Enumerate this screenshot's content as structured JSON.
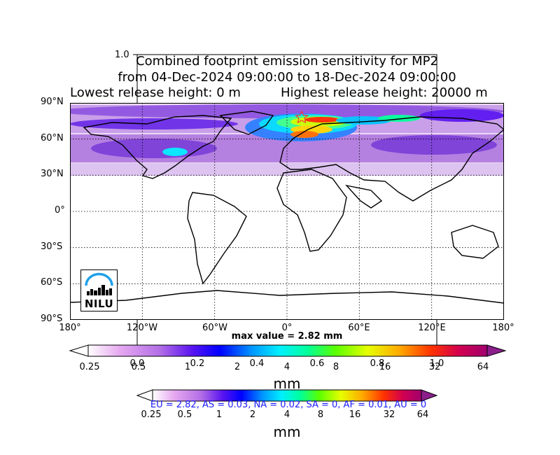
{
  "title": {
    "line1": "Combined footprint emission sensitivity for MP2",
    "line2": "from 04-Dec-2024 09:00:00 to 18-Dec-2024 09:00:00",
    "line3_left": "Lowest release height: 0 m",
    "line3_right": "Highest release height: 20000 m"
  },
  "background_axis": {
    "top_tick": "1.0",
    "bottom_ticks": [
      "0.0",
      "0.2",
      "0.4",
      "0.6",
      "0.8",
      "1.0"
    ]
  },
  "map": {
    "lat_labels": [
      "90°N",
      "60°N",
      "30°N",
      "0°",
      "30°S",
      "60°S",
      "90°S"
    ],
    "lon_labels": [
      "180°",
      "120°W",
      "60°W",
      "0°",
      "60°E",
      "120°E",
      "180°"
    ],
    "max_value_text": "max value = 2.82 mm",
    "release_site_marker": "star",
    "logo_text": "NILU"
  },
  "colorbar_main": {
    "ticks": [
      "0.25",
      "0.5",
      "1",
      "2",
      "4",
      "8",
      "16",
      "32",
      "64"
    ],
    "unit": "mm",
    "colors": [
      "#ffffff",
      "#e6a8f0",
      "#c86ee6",
      "#9b3de0",
      "#5a14f0",
      "#0000ff",
      "#0078ff",
      "#00e5ff",
      "#00ff9a",
      "#55ff00",
      "#c8ff00",
      "#ffe600",
      "#ffaa00",
      "#ff5a00",
      "#ff0000",
      "#d2004b",
      "#a0006e"
    ]
  },
  "colorbar_secondary": {
    "ticks": [
      "0.25",
      "0.5",
      "1",
      "2",
      "4",
      "8",
      "16",
      "32",
      "64"
    ],
    "unit": "mm"
  },
  "stats_text": "EU = 2.82,  AS = 0.03,  NA = 0.02,  SA = 0,  AF = 0.01,  AU = 0"
}
